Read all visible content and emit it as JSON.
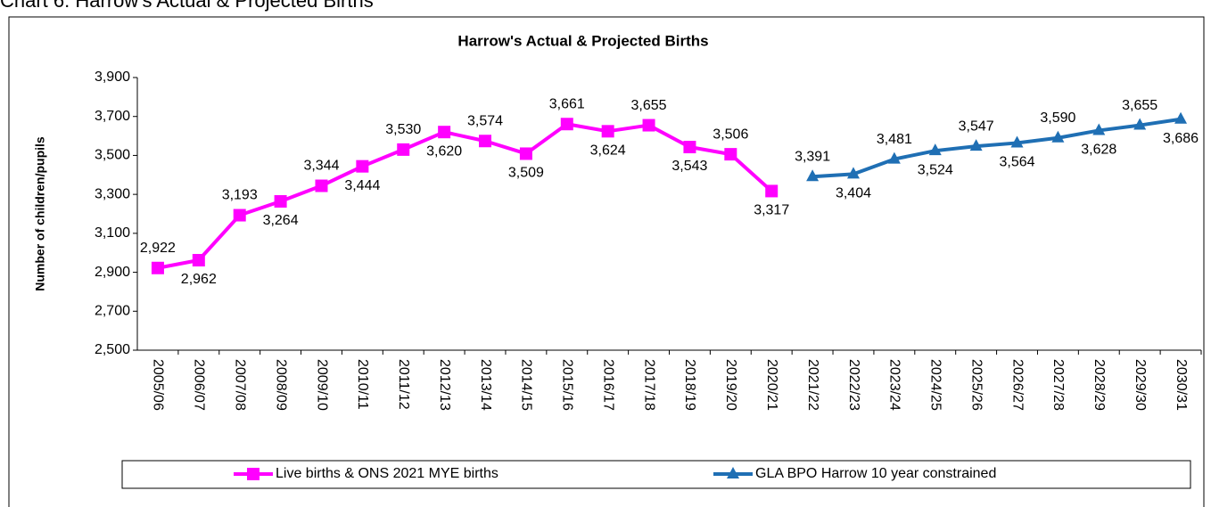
{
  "heading": "Chart 6: Harrow's Actual & Projected Births",
  "chart_data": {
    "type": "line",
    "title": "Harrow's Actual & Projected Births",
    "y_label": "Number of children/pupils",
    "categories": [
      "2005/06",
      "2006/07",
      "2007/08",
      "2008/09",
      "2009/10",
      "2010/11",
      "2011/12",
      "2012/13",
      "2013/14",
      "2014/15",
      "2015/16",
      "2016/17",
      "2017/18",
      "2018/19",
      "2019/20",
      "2020/21",
      "2021/22",
      "2022/23",
      "2023/24",
      "2024/25",
      "2025/26",
      "2026/27",
      "2027/28",
      "2028/29",
      "2029/30",
      "2030/31"
    ],
    "series": [
      {
        "name": "Live births & ONS 2021 MYE births",
        "color": "#ff00ff",
        "marker": "square",
        "values": [
          2922,
          2962,
          3193,
          3264,
          3344,
          3444,
          3530,
          3620,
          3574,
          3509,
          3661,
          3624,
          3655,
          3543,
          3506,
          3317,
          null,
          null,
          null,
          null,
          null,
          null,
          null,
          null,
          null,
          null
        ],
        "value_labels": [
          "2,922",
          "2,962",
          "3,193",
          "3,264",
          "3,344",
          "3,444",
          "3,530",
          "3,620",
          "3,574",
          "3,509",
          "3,661",
          "3,624",
          "3,655",
          "3,543",
          "3,506",
          "3,317",
          null,
          null,
          null,
          null,
          null,
          null,
          null,
          null,
          null,
          null
        ]
      },
      {
        "name": "GLA BPO Harrow 10 year constrained",
        "color": "#1f6fb4",
        "marker": "triangle",
        "values": [
          null,
          null,
          null,
          null,
          null,
          null,
          null,
          null,
          null,
          null,
          null,
          null,
          null,
          null,
          null,
          null,
          3391,
          3404,
          3481,
          3524,
          3547,
          3564,
          3590,
          3628,
          3655,
          3686
        ],
        "value_labels": [
          null,
          null,
          null,
          null,
          null,
          null,
          null,
          null,
          null,
          null,
          null,
          null,
          null,
          null,
          null,
          null,
          "3,391",
          "3,404",
          "3,481",
          "3,524",
          "3,547",
          "3,564",
          "3,590",
          "3,628",
          "3,655",
          "3,686"
        ]
      }
    ],
    "ylim": [
      2500,
      3900
    ],
    "yticks": [
      {
        "value": 2500,
        "label": "2,500"
      },
      {
        "value": 2700,
        "label": "2,700"
      },
      {
        "value": 2900,
        "label": "2,900"
      },
      {
        "value": 3100,
        "label": "3,100"
      },
      {
        "value": 3300,
        "label": "3,300"
      },
      {
        "value": 3500,
        "label": "3,500"
      },
      {
        "value": 3700,
        "label": "3,700"
      },
      {
        "value": 3900,
        "label": "3,900"
      }
    ],
    "legend": "bottom",
    "grid": false
  }
}
